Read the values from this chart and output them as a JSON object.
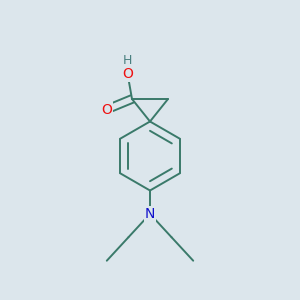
{
  "bg_color": "#dce6ec",
  "bond_color": "#3a7a6a",
  "atom_colors": {
    "O": "#ee1111",
    "N": "#1111cc",
    "H": "#4a8080"
  },
  "figsize": [
    3.0,
    3.0
  ],
  "dpi": 100,
  "lw": 1.4
}
